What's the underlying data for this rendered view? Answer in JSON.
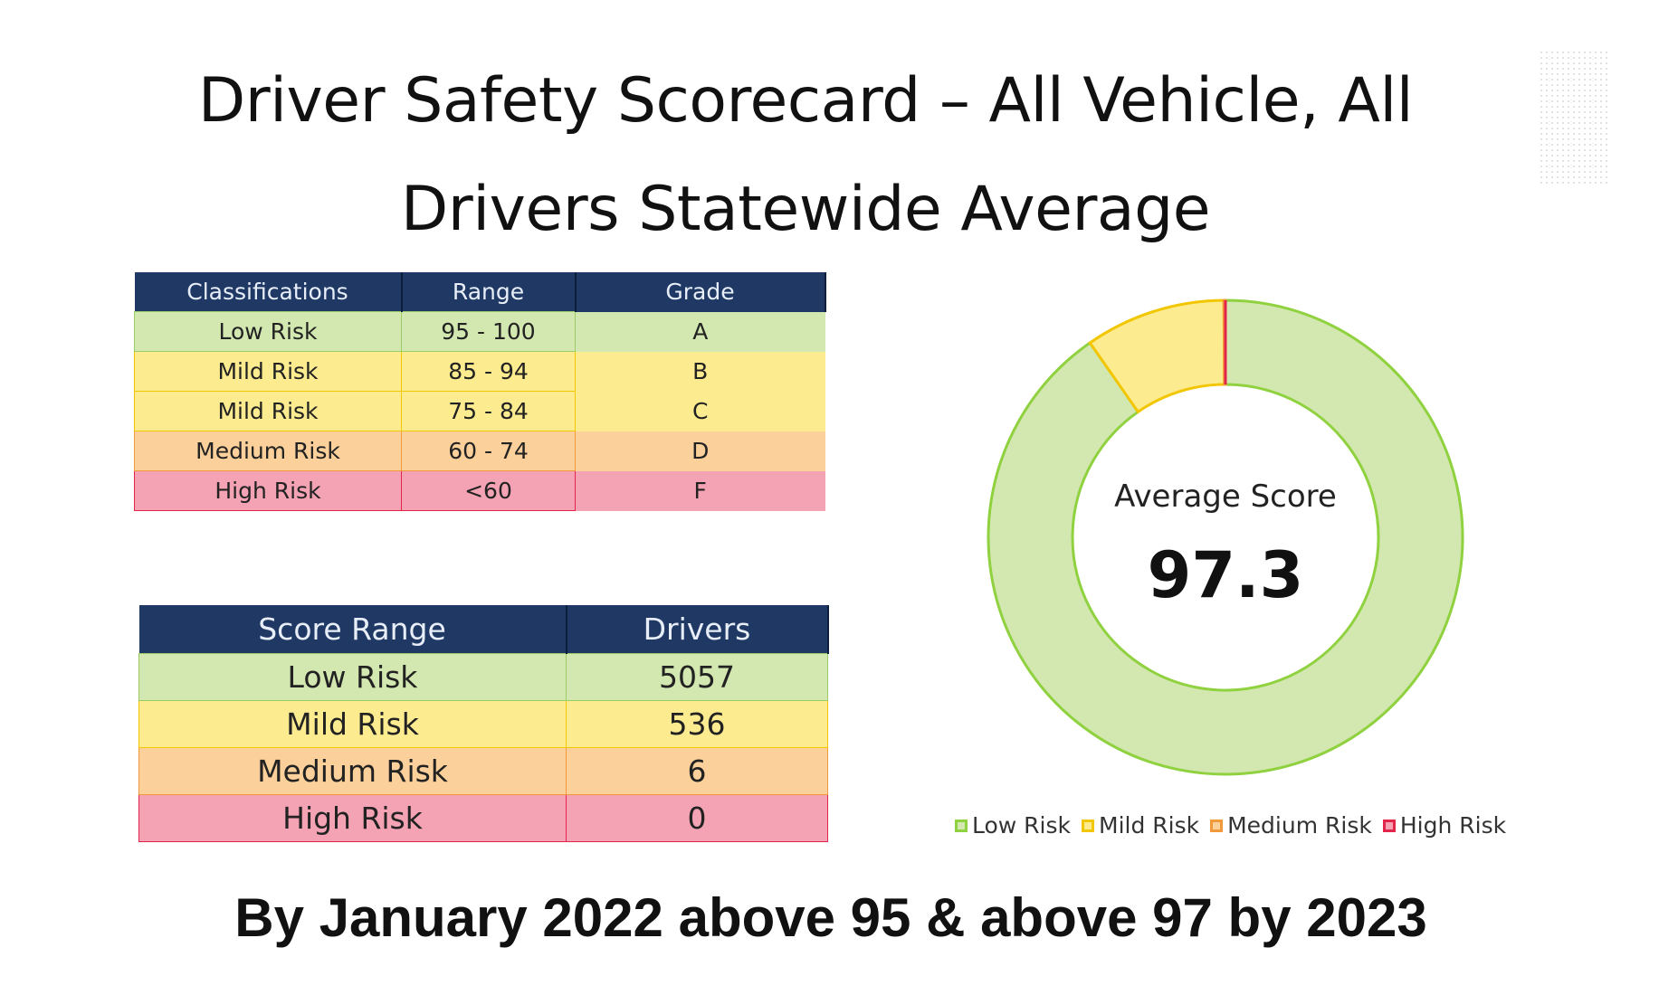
{
  "title_line1": "Driver Safety Scorecard – All Vehicle, All",
  "title_line2": "Drivers Statewide Average",
  "classification_table": {
    "headers": [
      "Classifications",
      "Range",
      "Grade"
    ],
    "rows": [
      {
        "classification": "Low Risk",
        "range": "95 - 100",
        "grade": "A"
      },
      {
        "classification": "Mild Risk",
        "range": "85 - 94",
        "grade": "B"
      },
      {
        "classification": "Mild Risk",
        "range": "75 - 84",
        "grade": "C"
      },
      {
        "classification": "Medium Risk",
        "range": "60 - 74",
        "grade": "D"
      },
      {
        "classification": "High Risk",
        "range": "<60",
        "grade": "F"
      }
    ]
  },
  "drivers_table": {
    "headers": [
      "Score Range",
      "Drivers"
    ],
    "rows": [
      {
        "range": "Low Risk",
        "drivers": "5057"
      },
      {
        "range": "Mild Risk",
        "drivers": "536"
      },
      {
        "range": "Medium Risk",
        "drivers": "6"
      },
      {
        "range": "High Risk",
        "drivers": "0"
      }
    ]
  },
  "chart_data": {
    "type": "pie",
    "variant": "donut",
    "center_label": "Average Score",
    "center_value": "97.3",
    "categories": [
      "Low Risk",
      "Mild Risk",
      "Medium Risk",
      "High Risk"
    ],
    "values": [
      5057,
      536,
      6,
      0
    ],
    "colors": {
      "fill": [
        "#d3e8b0",
        "#fdeb90",
        "#fbd09a",
        "#f4a3b4"
      ],
      "stroke": [
        "#8fd13f",
        "#f2c600",
        "#f29a3a",
        "#e4254a"
      ]
    },
    "legend": "bottom",
    "start": "top, clockwise"
  },
  "bottom_text": "By January 2022 above 95 & above 97 by 2023"
}
